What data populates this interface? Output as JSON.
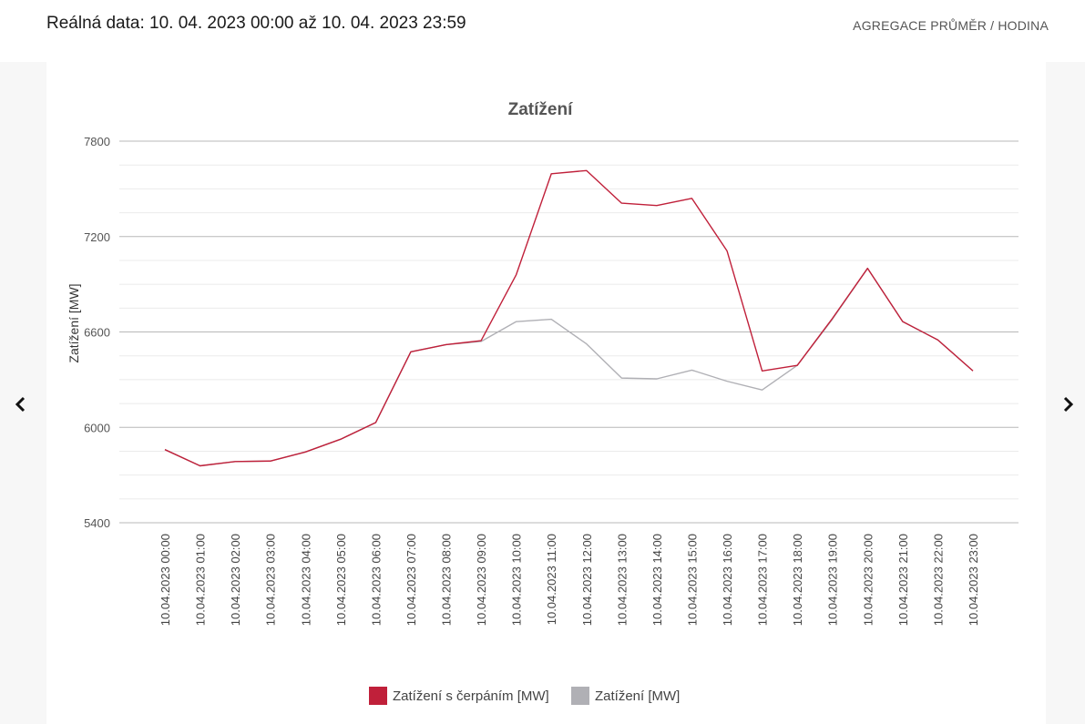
{
  "header": {
    "real_data_label": "Reálná data: 10. 04. 2023 00:00 až 10. 04. 2023 23:59",
    "aggregation_label": "AGREGACE PRŮMĚR / HODINA"
  },
  "icons": {
    "prev": "chevron-left-icon",
    "next": "chevron-right-icon"
  },
  "colors": {
    "series_pumping": "#c0203a",
    "series_load": "#b0b0b5",
    "grid_major": "#b8b8b8",
    "grid_minor": "#ebebeb",
    "text": "#555555"
  },
  "chart_data": {
    "type": "line",
    "title": "Zatížení",
    "ylabel": "Zatížení [MW]",
    "xlabel": "",
    "ylim": [
      5400,
      7800
    ],
    "yticks": [
      5400,
      6000,
      6600,
      7200,
      7800
    ],
    "grid": true,
    "legend_position": "bottom-center",
    "categories": [
      "10.04.2023 00:00",
      "10.04.2023 01:00",
      "10.04.2023 02:00",
      "10.04.2023 03:00",
      "10.04.2023 04:00",
      "10.04.2023 05:00",
      "10.04.2023 06:00",
      "10.04.2023 07:00",
      "10.04.2023 08:00",
      "10.04.2023 09:00",
      "10.04.2023 10:00",
      "10.04.2023 11:00",
      "10.04.2023 12:00",
      "10.04.2023 13:00",
      "10.04.2023 14:00",
      "10.04.2023 15:00",
      "10.04.2023 16:00",
      "10.04.2023 17:00",
      "10.04.2023 18:00",
      "10.04.2023 19:00",
      "10.04.2023 20:00",
      "10.04.2023 21:00",
      "10.04.2023 22:00",
      "10.04.2023 23:00"
    ],
    "series": [
      {
        "name": "Zatížení s čerpáním [MW]",
        "color": "#c0203a",
        "values": [
          5860,
          5758,
          5785,
          5788,
          5845,
          5925,
          6030,
          6475,
          6520,
          6545,
          6960,
          7595,
          7615,
          7410,
          7395,
          7440,
          7110,
          6355,
          6390,
          6685,
          7000,
          6665,
          6550,
          6355
        ]
      },
      {
        "name": "Zatížení [MW]",
        "color": "#b0b0b5",
        "values": [
          5860,
          5758,
          5785,
          5788,
          5845,
          5925,
          6030,
          6475,
          6520,
          6540,
          6665,
          6680,
          6525,
          6310,
          6305,
          6360,
          6290,
          6235,
          6390,
          6680,
          7000,
          6665,
          6550,
          6355
        ]
      }
    ]
  }
}
